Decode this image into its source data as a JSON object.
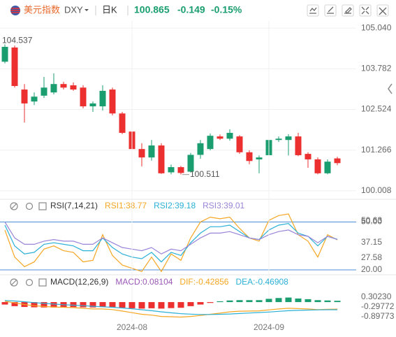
{
  "header": {
    "name": "美元指数",
    "code": "DXY",
    "period": "日K",
    "price": "100.865",
    "change": "-0.149",
    "change_pct": "-0.15%"
  },
  "chart_data": [
    {
      "type": "candlestick",
      "xlim": [
        -0.5,
        34.5
      ],
      "ylim": [
        99.79,
        105.26
      ],
      "yticks": [
        {
          "value": 105.04,
          "label": "105.040"
        },
        {
          "value": 103.782,
          "label": "103.782"
        },
        {
          "value": 102.524,
          "label": "102.524"
        },
        {
          "value": 101.266,
          "label": "101.266"
        },
        {
          "value": 100.008,
          "label": "100.008"
        }
      ],
      "up_color": "#1a9e6f",
      "down_color": "#ec2f2f",
      "open": [
        104.0,
        104.44,
        103.14,
        102.77,
        102.95,
        103.05,
        103.31,
        103.27,
        103.2,
        102.62,
        102.62,
        103.14,
        102.4,
        101.84,
        101.3,
        101.04,
        101.41,
        100.58,
        100.74,
        100.6,
        101.12,
        101.3,
        101.69,
        101.62,
        101.69,
        101.2,
        100.98,
        101.11,
        101.58,
        101.58,
        101.69,
        101.15,
        100.98,
        100.55,
        101.01
      ],
      "high": [
        104.537,
        104.5,
        103.31,
        103.05,
        103.53,
        103.64,
        103.38,
        103.36,
        103.27,
        102.77,
        103.27,
        103.2,
        102.45,
        101.91,
        101.48,
        101.58,
        101.48,
        100.82,
        100.78,
        101.18,
        101.58,
        101.78,
        101.75,
        101.91,
        101.73,
        101.26,
        101.1,
        101.62,
        101.69,
        101.76,
        101.8,
        101.2,
        101.04,
        100.98,
        101.06
      ],
      "low": [
        103.95,
        103.2,
        102.12,
        102.66,
        102.88,
        102.99,
        103.14,
        103.1,
        102.56,
        102.45,
        102.49,
        102.34,
        101.76,
        101.26,
        100.76,
        100.94,
        100.53,
        100.52,
        100.511,
        100.58,
        101.0,
        101.26,
        101.58,
        101.56,
        101.15,
        100.83,
        100.55,
        101.04,
        101.52,
        101.1,
        101.08,
        100.72,
        100.52,
        100.52,
        100.8
      ],
      "close": [
        104.46,
        103.25,
        102.71,
        102.92,
        103.2,
        103.31,
        103.2,
        103.14,
        102.62,
        102.71,
        103.1,
        102.4,
        101.8,
        101.3,
        101.04,
        101.41,
        100.55,
        100.74,
        100.56,
        101.12,
        101.48,
        101.71,
        101.62,
        101.8,
        101.2,
        100.93,
        101.04,
        101.58,
        101.62,
        101.69,
        101.11,
        100.98,
        100.55,
        100.91,
        100.865
      ],
      "annotations": [
        {
          "label": "104.537",
          "index": 0,
          "value": 104.537
        },
        {
          "label": "100.511",
          "index": 18,
          "value": 100.511
        }
      ]
    },
    {
      "type": "line",
      "title": "RSI(7,14,21)",
      "xlim": [
        -0.5,
        34.5
      ],
      "ylim": [
        18.25,
        55.45
      ],
      "yticks": [
        50.63,
        {
          "value": 50,
          "label": "50.00"
        },
        37.15,
        27.58,
        {
          "value": 20,
          "label": "20.00"
        }
      ],
      "hlines": [
        50,
        20
      ],
      "hline_color": "#4a90d9",
      "series": [
        {
          "name": "RSI1:38.77",
          "color": "#f5a623",
          "values": [
            45,
            28,
            22,
            25,
            33,
            35,
            32,
            31,
            25,
            26,
            42,
            29,
            23,
            21,
            19,
            28,
            19,
            30,
            26,
            40,
            50,
            53,
            52,
            53,
            46,
            40,
            38,
            51,
            54,
            55,
            42,
            38,
            28,
            42,
            38.77
          ]
        },
        {
          "name": "RSI2:39.18",
          "color": "#2bb0d6",
          "values": [
            48,
            35,
            30,
            31,
            36,
            37,
            36,
            35,
            32,
            32,
            40,
            34,
            30,
            28,
            27,
            31,
            25,
            31,
            29,
            37,
            43,
            47,
            47,
            48,
            44,
            40,
            39,
            45,
            48,
            49,
            43,
            41,
            35,
            41,
            39.18
          ]
        },
        {
          "name": "RSI3:39.01",
          "color": "#9a84d8",
          "values": [
            50,
            40,
            36,
            36,
            38,
            39,
            38,
            38,
            36,
            36,
            40,
            37,
            34,
            33,
            32,
            34,
            30,
            33,
            32,
            36,
            40,
            43,
            43,
            44,
            42,
            40,
            39,
            42,
            44,
            45,
            42,
            41,
            37,
            41,
            39.01
          ]
        }
      ]
    },
    {
      "type": "macd",
      "title": "MACD(12,26,9)",
      "xlim": [
        -0.5,
        34.5
      ],
      "ylim": [
        -1.2,
        0.82
      ],
      "yticks": [
        {
          "value": 0.3023,
          "label": "0.30230"
        },
        {
          "value": -0.29772,
          "label": "-0.29772"
        },
        {
          "value": -0.89773,
          "label": "-0.89773"
        }
      ],
      "xticks": [
        {
          "value": 13,
          "label": "2024-08"
        },
        {
          "value": 27,
          "label": "2024-09"
        }
      ],
      "pos_color": "#1a9e6f",
      "neg_color": "#ec2f2f",
      "histogram": {
        "name": "MACD:0.08104",
        "color": "#9b59b6",
        "values": [
          -0.15,
          -0.25,
          -0.3,
          -0.32,
          -0.33,
          -0.33,
          -0.32,
          -0.31,
          -0.32,
          -0.33,
          -0.3,
          -0.32,
          -0.35,
          -0.38,
          -0.4,
          -0.38,
          -0.4,
          -0.37,
          -0.35,
          -0.25,
          -0.15,
          -0.05,
          0.05,
          0.1,
          0.12,
          0.12,
          0.12,
          0.2,
          0.25,
          0.28,
          0.22,
          0.18,
          0.12,
          0.1,
          0.08104
        ]
      },
      "series": [
        {
          "name": "DIF:-0.42856",
          "color": "#f5a623",
          "values": [
            0.05,
            -0.05,
            -0.15,
            -0.22,
            -0.27,
            -0.3,
            -0.32,
            -0.34,
            -0.38,
            -0.42,
            -0.42,
            -0.46,
            -0.55,
            -0.65,
            -0.75,
            -0.8,
            -0.88,
            -0.9,
            -0.92,
            -0.88,
            -0.82,
            -0.75,
            -0.68,
            -0.6,
            -0.56,
            -0.55,
            -0.54,
            -0.48,
            -0.42,
            -0.38,
            -0.4,
            -0.42,
            -0.46,
            -0.44,
            -0.42856
          ]
        },
        {
          "name": "DEA:-0.46908",
          "color": "#2bb0d6",
          "values": [
            0.1,
            0.07,
            0.02,
            -0.03,
            -0.08,
            -0.12,
            -0.16,
            -0.19,
            -0.22,
            -0.26,
            -0.29,
            -0.32,
            -0.36,
            -0.41,
            -0.47,
            -0.53,
            -0.6,
            -0.66,
            -0.71,
            -0.74,
            -0.76,
            -0.76,
            -0.75,
            -0.73,
            -0.7,
            -0.67,
            -0.64,
            -0.61,
            -0.57,
            -0.53,
            -0.51,
            -0.49,
            -0.48,
            -0.47,
            -0.46908
          ]
        }
      ]
    }
  ]
}
